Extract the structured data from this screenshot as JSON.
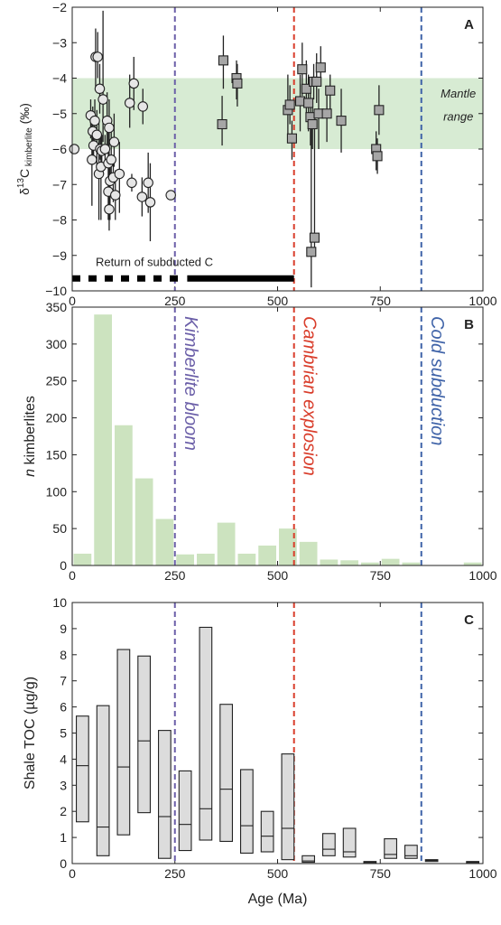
{
  "colors": {
    "mantle_band": "#d7ebd3",
    "bar_fill": "#cce3bf",
    "kimberlite_line": "#6b5fa8",
    "cambrian_line": "#d93d2b",
    "cold_line": "#3f63a8",
    "box_fill": "#dcdcdc",
    "marker_fill_circle": "#e6e6e6",
    "marker_fill_square": "#a6a6a6"
  },
  "chart_data": [
    {
      "type": "scatter",
      "panel_letter": "A",
      "ylabel_main": "δ",
      "ylabel_sup": "13",
      "ylabel_c": "C",
      "ylabel_sub": " kimberlite",
      "ylabel_tail": " (‰)",
      "xlim": [
        0,
        1000
      ],
      "ylim": [
        -10,
        -2
      ],
      "xticks": [
        0,
        250,
        500,
        750,
        1000
      ],
      "yticks": [
        -2,
        -3,
        -4,
        -5,
        -6,
        -7,
        -8,
        -9,
        -10
      ],
      "band": {
        "label_line1": "Mantle",
        "label_line2": "range",
        "y_range": [
          -6,
          -4
        ]
      },
      "subduction_bar": {
        "label": "Return of subducted C",
        "dashed_x_range": [
          0,
          260
        ],
        "solid_x_range": [
          280,
          540
        ],
        "y": -9.65
      },
      "series": [
        {
          "marker": "circle",
          "points": [
            {
              "x": 5,
              "y": -6.0,
              "lo": -6.0,
              "hi": -6.0
            },
            {
              "x": 45,
              "y": -5.05,
              "lo": -5.7,
              "hi": -4.6
            },
            {
              "x": 48,
              "y": -6.3,
              "lo": -7.6,
              "hi": -5.1
            },
            {
              "x": 50,
              "y": -5.5,
              "lo": -6.3,
              "hi": -4.8
            },
            {
              "x": 52,
              "y": -5.9,
              "lo": -6.3,
              "hi": -5.4
            },
            {
              "x": 55,
              "y": -5.2,
              "lo": -5.8,
              "hi": -4.6
            },
            {
              "x": 57,
              "y": -3.4,
              "lo": -4.3,
              "hi": -2.6
            },
            {
              "x": 60,
              "y": -5.6,
              "lo": -6.5,
              "hi": -4.9
            },
            {
              "x": 62,
              "y": -3.4,
              "lo": -4.0,
              "hi": -2.7
            },
            {
              "x": 65,
              "y": -6.7,
              "lo": -8.0,
              "hi": -5.2
            },
            {
              "x": 67,
              "y": -4.3,
              "lo": -5.0,
              "hi": -3.6
            },
            {
              "x": 70,
              "y": -6.5,
              "lo": -8.0,
              "hi": -5.6
            },
            {
              "x": 68,
              "y": -6.0,
              "lo": -6.3,
              "hi": -5.7
            },
            {
              "x": 72,
              "y": -6.05,
              "lo": -6.5,
              "hi": -5.6
            },
            {
              "x": 75,
              "y": -4.6,
              "lo": -5.8,
              "hi": -2.1
            },
            {
              "x": 80,
              "y": -6.0,
              "lo": -6.5,
              "hi": -5.6
            },
            {
              "x": 85,
              "y": -5.2,
              "lo": -6.0,
              "hi": -4.4
            },
            {
              "x": 88,
              "y": -6.4,
              "lo": -8.0,
              "hi": -5.3
            },
            {
              "x": 90,
              "y": -5.4,
              "lo": -6.2,
              "hi": -4.6
            },
            {
              "x": 88,
              "y": -7.2,
              "lo": -8.0,
              "hi": -6.2
            },
            {
              "x": 90,
              "y": -7.7,
              "lo": -8.3,
              "hi": -6.5
            },
            {
              "x": 92,
              "y": -6.9,
              "lo": -8.0,
              "hi": -6.2
            },
            {
              "x": 95,
              "y": -6.3,
              "lo": -7.0,
              "hi": -5.5
            },
            {
              "x": 100,
              "y": -6.8,
              "lo": -7.5,
              "hi": -6.2
            },
            {
              "x": 102,
              "y": -5.8,
              "lo": -6.5,
              "hi": -5.0
            },
            {
              "x": 105,
              "y": -7.3,
              "lo": -8.0,
              "hi": -6.6
            },
            {
              "x": 115,
              "y": -6.7,
              "lo": -7.8,
              "hi": -5.8
            },
            {
              "x": 140,
              "y": -4.7,
              "lo": -5.4,
              "hi": -3.9
            },
            {
              "x": 145,
              "y": -6.95,
              "lo": -7.2,
              "hi": -6.7
            },
            {
              "x": 150,
              "y": -4.15,
              "lo": -4.9,
              "hi": -3.4
            },
            {
              "x": 170,
              "y": -7.35,
              "lo": -7.9,
              "hi": -6.8
            },
            {
              "x": 172,
              "y": -4.8,
              "lo": -5.3,
              "hi": -4.3
            },
            {
              "x": 185,
              "y": -6.95,
              "lo": -7.8,
              "hi": -6.1
            },
            {
              "x": 190,
              "y": -7.5,
              "lo": -8.6,
              "hi": -6.4
            },
            {
              "x": 240,
              "y": -7.3,
              "lo": -7.3,
              "hi": -7.3
            }
          ]
        },
        {
          "marker": "square",
          "points": [
            {
              "x": 365,
              "y": -5.3,
              "lo": -5.9,
              "hi": -4.5
            },
            {
              "x": 368,
              "y": -3.5,
              "lo": -4.3,
              "hi": -2.8
            },
            {
              "x": 400,
              "y": -4.0,
              "lo": -4.6,
              "hi": -3.5
            },
            {
              "x": 402,
              "y": -4.15,
              "lo": -4.8,
              "hi": -3.6
            },
            {
              "x": 525,
              "y": -4.9,
              "lo": -5.6,
              "hi": -3.9
            },
            {
              "x": 530,
              "y": -4.75,
              "lo": -5.3,
              "hi": -4.2
            },
            {
              "x": 535,
              "y": -5.7,
              "lo": -6.3,
              "hi": -5.2
            },
            {
              "x": 555,
              "y": -4.65,
              "lo": -5.5,
              "hi": -3.9
            },
            {
              "x": 560,
              "y": -3.75,
              "lo": -4.5,
              "hi": -3.0
            },
            {
              "x": 570,
              "y": -4.3,
              "lo": -5.1,
              "hi": -3.5
            },
            {
              "x": 575,
              "y": -4.7,
              "lo": -5.5,
              "hi": -3.9
            },
            {
              "x": 580,
              "y": -5.1,
              "lo": -5.9,
              "hi": -4.3
            },
            {
              "x": 582,
              "y": -8.9,
              "lo": -9.9,
              "hi": -5.3
            },
            {
              "x": 585,
              "y": -5.3,
              "lo": -6.0,
              "hi": -4.6
            },
            {
              "x": 588,
              "y": -4.1,
              "lo": -4.6,
              "hi": -3.6
            },
            {
              "x": 590,
              "y": -8.5,
              "lo": -8.9,
              "hi": -5.4
            },
            {
              "x": 595,
              "y": -4.1,
              "lo": -4.7,
              "hi": -3.3
            },
            {
              "x": 600,
              "y": -5.0,
              "lo": -6.0,
              "hi": -4.3
            },
            {
              "x": 605,
              "y": -3.7,
              "lo": -4.2,
              "hi": -3.1
            },
            {
              "x": 620,
              "y": -5.0,
              "lo": -5.8,
              "hi": -4.4
            },
            {
              "x": 628,
              "y": -4.35,
              "lo": -5.0,
              "hi": -3.9
            },
            {
              "x": 655,
              "y": -5.2,
              "lo": -6.1,
              "hi": -4.3
            },
            {
              "x": 740,
              "y": -6.0,
              "lo": -6.6,
              "hi": -5.5
            },
            {
              "x": 743,
              "y": -6.2,
              "lo": -6.7,
              "hi": -5.7
            },
            {
              "x": 747,
              "y": -4.9,
              "lo": -5.6,
              "hi": -4.2
            }
          ]
        }
      ]
    },
    {
      "type": "bar",
      "panel_letter": "B",
      "ylabel_italic": "n",
      "ylabel_rest": " kimberlites",
      "xlim": [
        0,
        1000
      ],
      "ylim": [
        0,
        350
      ],
      "xticks": [
        0,
        250,
        500,
        750,
        1000
      ],
      "yticks": [
        0,
        50,
        100,
        150,
        200,
        250,
        300,
        350
      ],
      "bin_width": 50,
      "bin_starts": [
        0,
        50,
        100,
        150,
        200,
        250,
        300,
        350,
        400,
        450,
        500,
        550,
        600,
        650,
        700,
        750,
        800,
        850,
        900,
        950
      ],
      "values": [
        16,
        340,
        190,
        118,
        63,
        15,
        16,
        58,
        16,
        27,
        50,
        32,
        8,
        7,
        4,
        9,
        4,
        0,
        0,
        4
      ],
      "vline_labels": [
        "Kimberlite bloom",
        "Cambrian explosion",
        "Cold subduction"
      ]
    },
    {
      "type": "box",
      "panel_letter": "C",
      "ylabel": "Shale TOC (µg/g)",
      "xlabel": "Age (Ma)",
      "xlim": [
        0,
        1000
      ],
      "ylim": [
        0,
        10
      ],
      "xticks": [
        0,
        250,
        500,
        750,
        1000
      ],
      "yticks": [
        0,
        1,
        2,
        3,
        4,
        5,
        6,
        7,
        8,
        9,
        10
      ],
      "boxes": [
        {
          "x0": 10,
          "x1": 40,
          "low": 1.6,
          "mid": 3.75,
          "high": 5.65
        },
        {
          "x0": 60,
          "x1": 90,
          "low": 0.3,
          "mid": 1.4,
          "high": 6.05
        },
        {
          "x0": 110,
          "x1": 140,
          "low": 1.1,
          "mid": 3.7,
          "high": 8.2
        },
        {
          "x0": 160,
          "x1": 190,
          "low": 1.95,
          "mid": 4.7,
          "high": 7.95
        },
        {
          "x0": 210,
          "x1": 240,
          "low": 0.2,
          "mid": 1.8,
          "high": 5.1
        },
        {
          "x0": 260,
          "x1": 290,
          "low": 0.5,
          "mid": 1.5,
          "high": 3.55
        },
        {
          "x0": 310,
          "x1": 340,
          "low": 0.9,
          "mid": 2.1,
          "high": 9.05
        },
        {
          "x0": 360,
          "x1": 390,
          "low": 0.85,
          "mid": 2.85,
          "high": 6.1
        },
        {
          "x0": 410,
          "x1": 440,
          "low": 0.4,
          "mid": 1.45,
          "high": 3.6
        },
        {
          "x0": 460,
          "x1": 490,
          "low": 0.45,
          "mid": 1.05,
          "high": 2.0
        },
        {
          "x0": 510,
          "x1": 540,
          "low": 0.15,
          "mid": 1.35,
          "high": 4.2
        },
        {
          "x0": 560,
          "x1": 590,
          "low": 0.05,
          "mid": 0.1,
          "high": 0.3
        },
        {
          "x0": 610,
          "x1": 640,
          "low": 0.3,
          "mid": 0.55,
          "high": 1.15
        },
        {
          "x0": 660,
          "x1": 690,
          "low": 0.25,
          "mid": 0.45,
          "high": 1.35
        },
        {
          "x0": 710,
          "x1": 740,
          "low": 0.03,
          "mid": 0.05,
          "high": 0.08
        },
        {
          "x0": 760,
          "x1": 790,
          "low": 0.2,
          "mid": 0.35,
          "high": 0.95
        },
        {
          "x0": 810,
          "x1": 840,
          "low": 0.2,
          "mid": 0.3,
          "high": 0.7
        },
        {
          "x0": 860,
          "x1": 890,
          "low": 0.1,
          "mid": 0.12,
          "high": 0.15
        },
        {
          "x0": 960,
          "x1": 990,
          "low": 0.03,
          "mid": 0.05,
          "high": 0.08
        }
      ]
    }
  ],
  "vlines": [
    {
      "x": 250,
      "color_key": "kimberlite_line"
    },
    {
      "x": 540,
      "color_key": "cambrian_line"
    },
    {
      "x": 850,
      "color_key": "cold_line"
    }
  ]
}
